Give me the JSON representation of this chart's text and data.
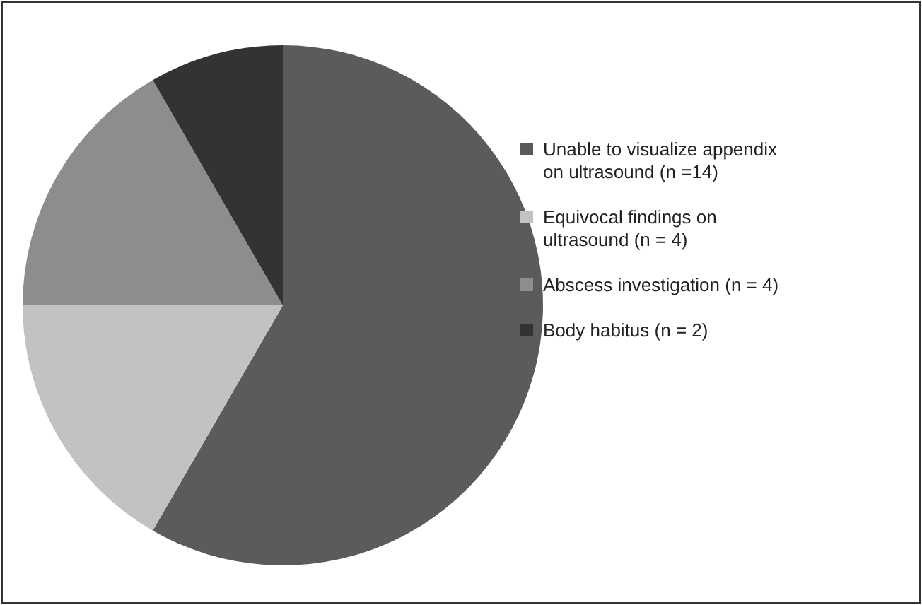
{
  "chart_data": {
    "type": "pie",
    "categories": [
      "Unable to visualize appendix on ultrasound (n =14)",
      "Equivocal findings on ultrasound (n = 4)",
      "Abscess investigation (n = 4)",
      "Body habitus (n = 2)"
    ],
    "values": [
      14,
      4,
      4,
      2
    ],
    "colors": [
      "#5b5b5b",
      "#c2c2c2",
      "#8d8d8d",
      "#333333"
    ],
    "legend": "right"
  }
}
